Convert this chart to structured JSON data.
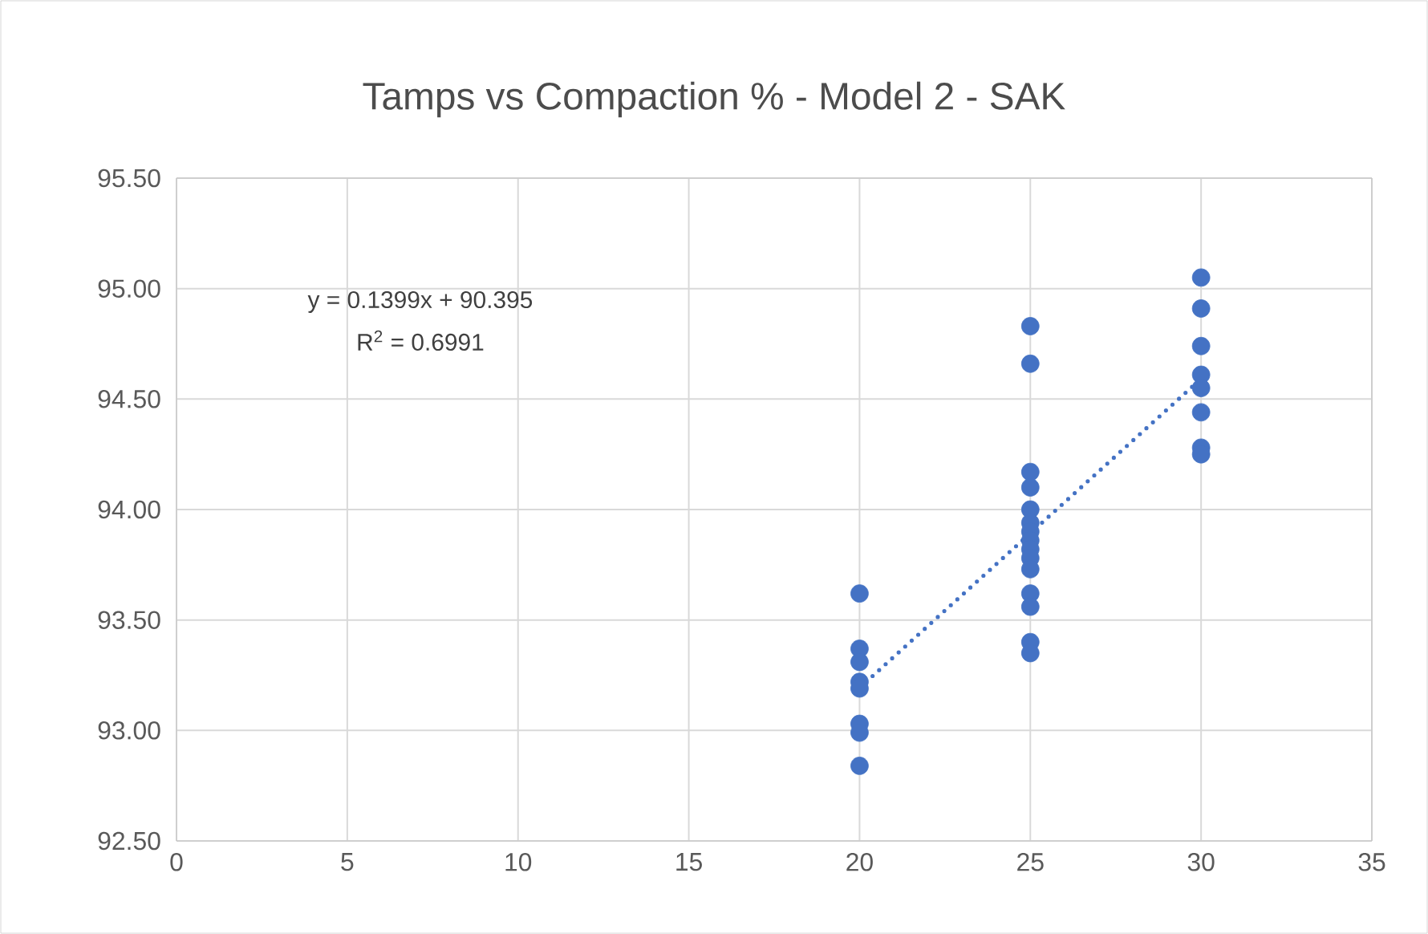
{
  "chart_data": {
    "type": "scatter",
    "title": "Tamps vs Compaction % - Model 2 - SAK",
    "series": [
      {
        "color": "#4472c4",
        "x": [
          20,
          20,
          20,
          20,
          20,
          20,
          20,
          20,
          25,
          25,
          25,
          25,
          25,
          25,
          25,
          25,
          25,
          25,
          25,
          25,
          25,
          25,
          25,
          30,
          30,
          30,
          30,
          30,
          30,
          30,
          30
        ],
        "values": [
          93.62,
          93.37,
          93.31,
          93.22,
          93.19,
          93.03,
          92.99,
          92.84,
          94.83,
          94.66,
          94.17,
          94.1,
          94.0,
          93.94,
          93.9,
          93.86,
          93.82,
          93.78,
          93.73,
          93.62,
          93.56,
          93.4,
          93.35,
          95.05,
          94.91,
          94.74,
          94.61,
          94.55,
          94.44,
          94.28,
          94.25
        ]
      },
      {
        "type": "line",
        "color": "#4472c4",
        "line_style": "dotted",
        "marker": "none",
        "x": [
          20,
          30
        ],
        "values": [
          93.193,
          94.592
        ]
      }
    ],
    "xlim": [
      0,
      35
    ],
    "xticks": [
      0,
      5,
      10,
      15,
      20,
      25,
      30,
      35
    ],
    "ylim": [
      92.5,
      95.5
    ],
    "yticks": [
      {
        "value": 92.5,
        "label": "92.50"
      },
      {
        "value": 93,
        "label": "93.00"
      },
      {
        "value": 93.5,
        "label": "93.50"
      },
      {
        "value": 94,
        "label": "94.00"
      },
      {
        "value": 94.5,
        "label": "94.50"
      },
      {
        "value": 95,
        "label": "95.00"
      },
      {
        "value": 95.5,
        "label": "95.50"
      }
    ],
    "grid": true,
    "marker": "circle",
    "annotations": [
      "y = 0.1399x + 90.395",
      "R$^{2}$ = 0.6991"
    ]
  }
}
